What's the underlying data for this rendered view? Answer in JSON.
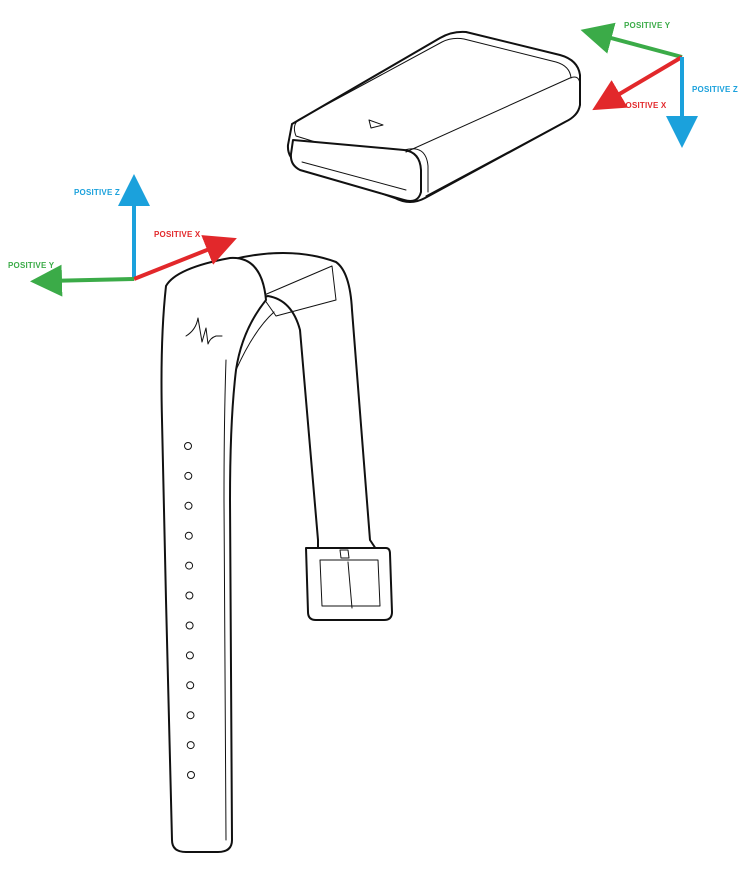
{
  "colors": {
    "axis_x": "#e2282b",
    "axis_y": "#3bab48",
    "axis_z": "#1ba1dc",
    "line": "#111111",
    "background": "#ffffff"
  },
  "device_axes": {
    "positive_y": "POSITIVE Y",
    "positive_x": "POSITIVE X",
    "positive_z": "POSITIVE Z"
  },
  "band_axes": {
    "positive_z": "POSITIVE Z",
    "positive_x": "POSITIVE X",
    "positive_y": "POSITIVE Y"
  },
  "illustrations": {
    "device": "sensor-device",
    "band": "wrist-strap",
    "strap_holes_count": 12
  }
}
